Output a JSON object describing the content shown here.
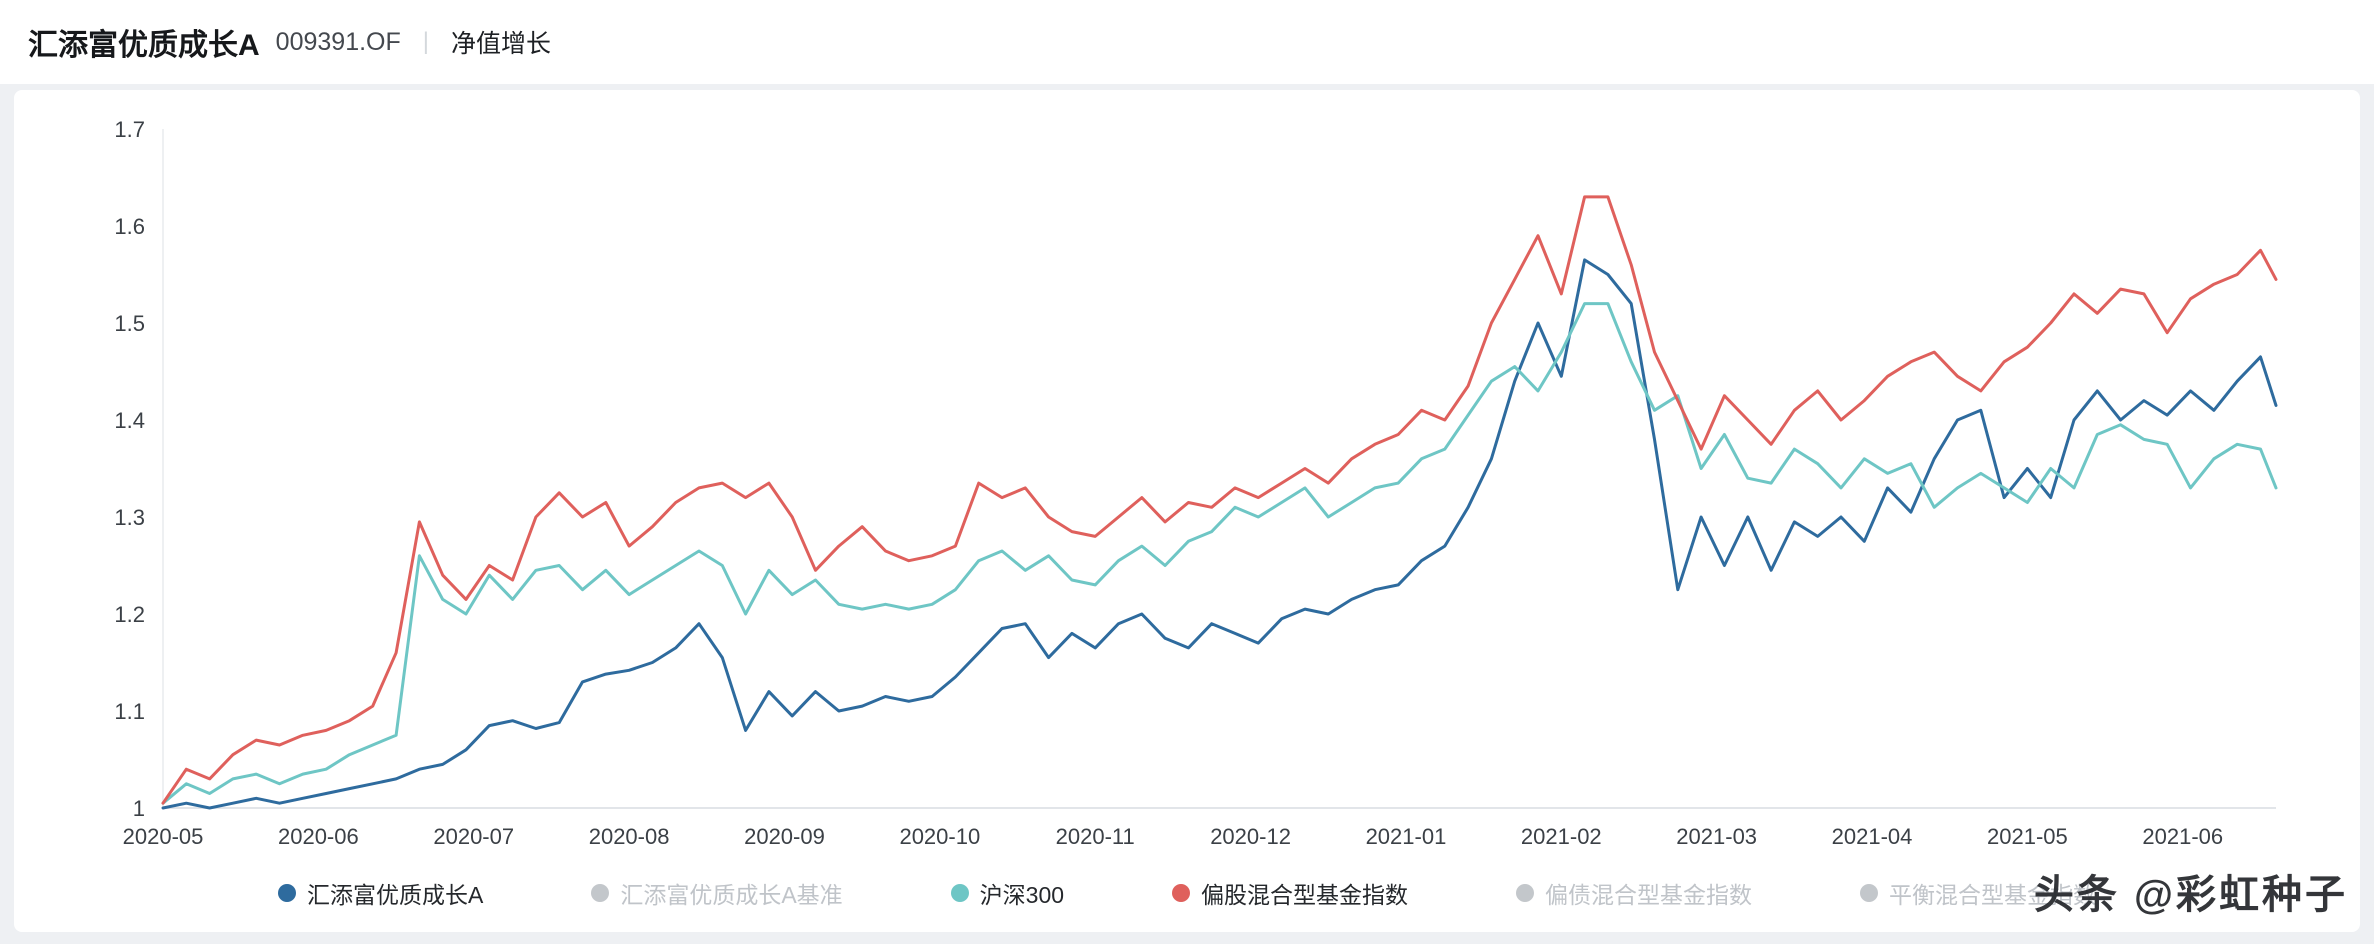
{
  "header": {
    "title": "汇添富优质成长A",
    "code": "009391.OF",
    "divider": "|",
    "subtitle": "净值增长"
  },
  "watermark": {
    "text": "头条 @彩虹种子"
  },
  "chart_data": {
    "type": "line",
    "title": "",
    "xlabel": "",
    "ylabel": "",
    "grid": false,
    "legend_position": "bottom",
    "ylim": [
      1,
      1.7
    ],
    "yticks": [
      1,
      1.1,
      1.2,
      1.3,
      1.4,
      1.5,
      1.6,
      1.7
    ],
    "xtick_labels": [
      "2020-05",
      "2020-06",
      "2020-07",
      "2020-08",
      "2020-09",
      "2020-10",
      "2020-11",
      "2020-12",
      "2021-01",
      "2021-02",
      "2021-03",
      "2021-04",
      "2021-05",
      "2021-06"
    ],
    "x_months": [
      0,
      0.15,
      0.3,
      0.45,
      0.6,
      0.75,
      0.9,
      1.05,
      1.2,
      1.35,
      1.5,
      1.65,
      1.8,
      1.95,
      2.1,
      2.25,
      2.4,
      2.55,
      2.7,
      2.85,
      3.0,
      3.15,
      3.3,
      3.45,
      3.6,
      3.75,
      3.9,
      4.05,
      4.2,
      4.35,
      4.5,
      4.65,
      4.8,
      4.95,
      5.1,
      5.25,
      5.4,
      5.55,
      5.7,
      5.85,
      6.0,
      6.15,
      6.3,
      6.45,
      6.6,
      6.75,
      6.9,
      7.05,
      7.2,
      7.35,
      7.5,
      7.65,
      7.8,
      7.95,
      8.1,
      8.25,
      8.4,
      8.55,
      8.7,
      8.85,
      9.0,
      9.15,
      9.3,
      9.45,
      9.6,
      9.75,
      9.9,
      10.05,
      10.2,
      10.35,
      10.5,
      10.65,
      10.8,
      10.95,
      11.1,
      11.25,
      11.4,
      11.55,
      11.7,
      11.85,
      12.0,
      12.15,
      12.3,
      12.45,
      12.6,
      12.75,
      12.9,
      13.05,
      13.2,
      13.35,
      13.5,
      13.6
    ],
    "series": [
      {
        "name": "汇添富优质成长A",
        "color": "#2e6b9e",
        "enabled": true,
        "values": [
          1.0,
          1.005,
          1.0,
          1.005,
          1.01,
          1.005,
          1.01,
          1.015,
          1.02,
          1.025,
          1.03,
          1.04,
          1.045,
          1.06,
          1.085,
          1.09,
          1.082,
          1.088,
          1.13,
          1.138,
          1.142,
          1.15,
          1.165,
          1.19,
          1.155,
          1.08,
          1.12,
          1.095,
          1.12,
          1.1,
          1.105,
          1.115,
          1.11,
          1.115,
          1.135,
          1.16,
          1.185,
          1.19,
          1.155,
          1.18,
          1.165,
          1.19,
          1.2,
          1.175,
          1.165,
          1.19,
          1.18,
          1.17,
          1.195,
          1.205,
          1.2,
          1.215,
          1.225,
          1.23,
          1.255,
          1.27,
          1.31,
          1.36,
          1.44,
          1.5,
          1.445,
          1.565,
          1.55,
          1.52,
          1.38,
          1.225,
          1.3,
          1.25,
          1.3,
          1.245,
          1.295,
          1.28,
          1.3,
          1.275,
          1.33,
          1.305,
          1.36,
          1.4,
          1.41,
          1.32,
          1.35,
          1.32,
          1.4,
          1.43,
          1.4,
          1.42,
          1.405,
          1.43,
          1.41,
          1.44,
          1.465,
          1.415
        ]
      },
      {
        "name": "沪深300",
        "color": "#6ec6c5",
        "enabled": true,
        "values": [
          1.005,
          1.025,
          1.015,
          1.03,
          1.035,
          1.025,
          1.035,
          1.04,
          1.055,
          1.065,
          1.075,
          1.26,
          1.215,
          1.2,
          1.24,
          1.215,
          1.245,
          1.25,
          1.225,
          1.245,
          1.22,
          1.235,
          1.25,
          1.265,
          1.25,
          1.2,
          1.245,
          1.22,
          1.235,
          1.21,
          1.205,
          1.21,
          1.205,
          1.21,
          1.225,
          1.255,
          1.265,
          1.245,
          1.26,
          1.235,
          1.23,
          1.255,
          1.27,
          1.25,
          1.275,
          1.285,
          1.31,
          1.3,
          1.315,
          1.33,
          1.3,
          1.315,
          1.33,
          1.335,
          1.36,
          1.37,
          1.405,
          1.44,
          1.455,
          1.43,
          1.47,
          1.52,
          1.52,
          1.46,
          1.41,
          1.425,
          1.35,
          1.385,
          1.34,
          1.335,
          1.37,
          1.355,
          1.33,
          1.36,
          1.345,
          1.355,
          1.31,
          1.33,
          1.345,
          1.33,
          1.315,
          1.35,
          1.33,
          1.385,
          1.395,
          1.38,
          1.375,
          1.33,
          1.36,
          1.375,
          1.37,
          1.33
        ]
      },
      {
        "name": "偏股混合型基金指数",
        "color": "#df605c",
        "enabled": true,
        "values": [
          1.005,
          1.04,
          1.03,
          1.055,
          1.07,
          1.065,
          1.075,
          1.08,
          1.09,
          1.105,
          1.16,
          1.295,
          1.24,
          1.215,
          1.25,
          1.235,
          1.3,
          1.325,
          1.3,
          1.315,
          1.27,
          1.29,
          1.315,
          1.33,
          1.335,
          1.32,
          1.335,
          1.3,
          1.245,
          1.27,
          1.29,
          1.265,
          1.255,
          1.26,
          1.27,
          1.335,
          1.32,
          1.33,
          1.3,
          1.285,
          1.28,
          1.3,
          1.32,
          1.295,
          1.315,
          1.31,
          1.33,
          1.32,
          1.335,
          1.35,
          1.335,
          1.36,
          1.375,
          1.385,
          1.41,
          1.4,
          1.435,
          1.5,
          1.545,
          1.59,
          1.53,
          1.63,
          1.63,
          1.56,
          1.47,
          1.42,
          1.37,
          1.425,
          1.4,
          1.375,
          1.41,
          1.43,
          1.4,
          1.42,
          1.445,
          1.46,
          1.47,
          1.445,
          1.43,
          1.46,
          1.475,
          1.5,
          1.53,
          1.51,
          1.535,
          1.53,
          1.49,
          1.525,
          1.54,
          1.55,
          1.575,
          1.545
        ]
      }
    ],
    "legend": [
      {
        "label": "汇添富优质成长A",
        "color": "#2e6b9e",
        "enabled": true
      },
      {
        "label": "汇添富优质成长A基准",
        "color": "#c3c7cb",
        "enabled": false
      },
      {
        "label": "沪深300",
        "color": "#6ec6c5",
        "enabled": true
      },
      {
        "label": "偏股混合型基金指数",
        "color": "#df605c",
        "enabled": true
      },
      {
        "label": "偏债混合型基金指数",
        "color": "#c3c7cb",
        "enabled": false
      },
      {
        "label": "平衡混合型基金指数",
        "color": "#c3c7cb",
        "enabled": false
      }
    ]
  }
}
